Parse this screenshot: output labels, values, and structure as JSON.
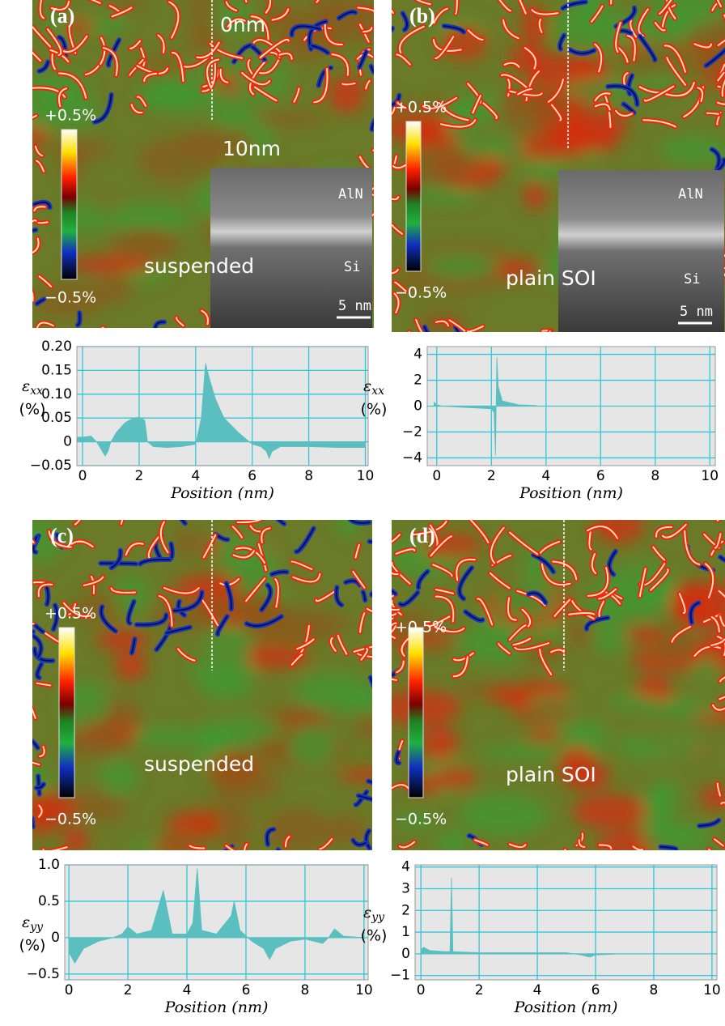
{
  "chart_data": [
    {
      "type": "area",
      "panel_label": "(a)",
      "map_labels": [
        "0nm",
        "10nm",
        "suspended"
      ],
      "inset_labels": [
        "AlN",
        "Si",
        "5 nm"
      ],
      "colorbar_labels": [
        "+0.5%",
        "−0.5%"
      ],
      "ylabel": "ε",
      "ylabel_subscript": "xx",
      "ylabel_unit": "(%)",
      "xlabel": "Position (nm)",
      "color": "#5bbfbf",
      "grid": true,
      "x": [
        -0.2,
        0,
        0.3,
        0.5,
        0.7,
        0.8,
        0.9,
        1.0,
        1.2,
        1.5,
        1.8,
        2.0,
        2.2,
        2.3,
        2.5,
        3.0,
        3.5,
        4.0,
        4.2,
        4.35,
        4.5,
        4.7,
        5.0,
        5.5,
        5.8,
        6.0,
        6.3,
        6.5,
        6.6,
        6.7,
        7.0,
        8.0,
        9.0,
        10.0
      ],
      "values": [
        0.01,
        0.01,
        0.012,
        0,
        -0.02,
        -0.03,
        -0.02,
        0,
        0.02,
        0.04,
        0.05,
        0.052,
        0.045,
        0,
        -0.01,
        -0.012,
        -0.01,
        -0.005,
        0.05,
        0.165,
        0.13,
        0.09,
        0.05,
        0.02,
        0.005,
        -0.005,
        -0.01,
        -0.02,
        -0.035,
        -0.02,
        -0.01,
        -0.01,
        -0.012,
        -0.012
      ],
      "xlim": [
        -0.2,
        10.1
      ],
      "ylim": [
        -0.05,
        0.2
      ],
      "xticks": [
        0,
        2,
        4,
        6,
        8,
        10
      ],
      "yticks": [
        {
          "value": -0.05,
          "label": "−0.05"
        },
        0,
        0.05,
        {
          "value": 0.1,
          "label": "0.10"
        },
        0.15,
        {
          "value": 0.2,
          "label": "0.20"
        }
      ]
    },
    {
      "type": "area",
      "panel_label": "(b)",
      "map_labels": [
        "plain SOI"
      ],
      "inset_labels": [
        "AlN",
        "Si",
        "5 nm"
      ],
      "colorbar_labels": [
        "+0.5%",
        "−0.5%"
      ],
      "ylabel": "ε",
      "ylabel_subscript": "xx",
      "ylabel_unit": "(%)",
      "xlabel": "Position (nm)",
      "color": "#5bbfbf",
      "grid": true,
      "x": [
        -0.1,
        0,
        0.2,
        1.0,
        2.0,
        2.1,
        2.15,
        2.2,
        2.25,
        2.4,
        3.0,
        3.6,
        3.7,
        10.0
      ],
      "values": [
        0.3,
        0.1,
        0,
        -0.1,
        -0.2,
        -0.5,
        -3.8,
        3.8,
        1.5,
        0.4,
        0.1,
        0.05,
        0,
        0
      ],
      "xlim": [
        -0.35,
        10.2
      ],
      "ylim": [
        -4.6,
        4.6
      ],
      "xticks": [
        0,
        2,
        4,
        6,
        8,
        10
      ],
      "yticks": [
        {
          "value": -4,
          "label": "−4"
        },
        {
          "value": -2,
          "label": "−2"
        },
        0,
        2,
        4
      ]
    },
    {
      "type": "area",
      "panel_label": "(c)",
      "map_labels": [
        "suspended"
      ],
      "colorbar_labels": [
        "+0.5%",
        "−0.5%"
      ],
      "ylabel": "ε",
      "ylabel_subscript": "yy",
      "ylabel_unit": "(%)",
      "xlabel": "Position (nm)",
      "color": "#5bbfbf",
      "grid": true,
      "x": [
        0,
        0.2,
        0.5,
        1.0,
        1.5,
        1.8,
        2.0,
        2.3,
        2.8,
        3.2,
        3.5,
        4.0,
        4.2,
        4.35,
        4.5,
        5.0,
        5.5,
        5.6,
        5.8,
        6.2,
        6.6,
        6.8,
        7.0,
        7.5,
        8.0,
        8.6,
        8.8,
        9.0,
        9.3,
        10.0
      ],
      "values": [
        -0.2,
        -0.35,
        -0.15,
        -0.05,
        0,
        0.05,
        0.15,
        0.05,
        0.1,
        0.65,
        0.05,
        0.05,
        0.2,
        0.95,
        0.1,
        0.05,
        0.3,
        0.5,
        0.1,
        -0.05,
        -0.15,
        -0.3,
        -0.15,
        -0.05,
        -0.02,
        -0.08,
        0,
        0.12,
        0.02,
        0
      ],
      "xlim": [
        -0.14,
        10.14
      ],
      "ylim": [
        -0.58,
        1.0
      ],
      "xticks": [
        0,
        2,
        4,
        6,
        8,
        10
      ],
      "yticks": [
        {
          "value": -0.5,
          "label": "−0.5"
        },
        0,
        0.5,
        {
          "value": 1.0,
          "label": "1.0"
        }
      ]
    },
    {
      "type": "area",
      "panel_label": "(d)",
      "map_labels": [
        "plain SOI"
      ],
      "colorbar_labels": [
        "+0.5%",
        "−0.5%"
      ],
      "ylabel": "ε",
      "ylabel_subscript": "yy",
      "ylabel_unit": "(%)",
      "xlabel": "Position (nm)",
      "color": "#5bbfbf",
      "grid": true,
      "x": [
        0,
        0.1,
        0.3,
        0.8,
        1.0,
        1.05,
        1.1,
        2.0,
        5.0,
        5.5,
        5.8,
        6.0,
        7.0,
        10.0
      ],
      "values": [
        0.2,
        0.3,
        0.15,
        0.1,
        0.1,
        3.5,
        0.1,
        0.05,
        0.05,
        -0.05,
        -0.15,
        -0.05,
        0,
        0
      ],
      "xlim": [
        -0.2,
        10.17
      ],
      "ylim": [
        -1.2,
        4.1
      ],
      "xticks": [
        0,
        2,
        4,
        6,
        8,
        10
      ],
      "yticks": [
        {
          "value": -1,
          "label": "−1"
        },
        0,
        1,
        2,
        3,
        4
      ]
    }
  ]
}
